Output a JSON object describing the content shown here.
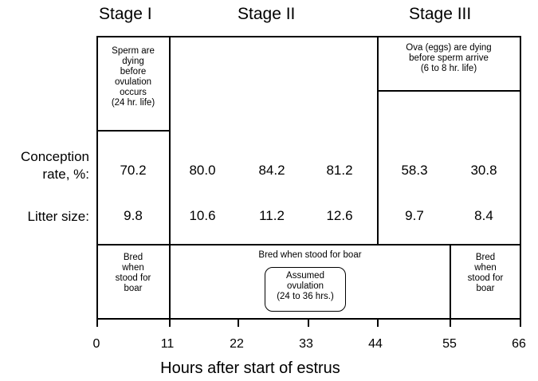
{
  "stages": [
    "Stage I",
    "Stage II",
    "Stage III"
  ],
  "top_notes": {
    "stage1": [
      "Sperm are",
      "dying",
      "before",
      "ovulation",
      "occurs",
      "(24 hr. life)"
    ],
    "stage3": [
      "Ova (eggs) are dying",
      "before sperm arrive",
      "(6 to 8 hr. life)"
    ]
  },
  "row_labels": {
    "conception": [
      "Conception",
      "rate, %:"
    ],
    "litter": "Litter size:"
  },
  "conception_rates": [
    "70.2",
    "80.0",
    "84.2",
    "81.2",
    "58.3",
    "30.8"
  ],
  "litter_sizes": [
    "9.8",
    "10.6",
    "11.2",
    "12.6",
    "9.7",
    "8.4"
  ],
  "bottom_notes": {
    "left": [
      "Bred",
      "when",
      "stood for",
      "boar"
    ],
    "middle": "Bred when stood for boar",
    "ovulation": [
      "Assumed",
      "ovulation",
      "(24 to 36 hrs.)"
    ],
    "right": [
      "Bred",
      "when",
      "stood for",
      "boar"
    ]
  },
  "x_ticks": [
    "0",
    "11",
    "22",
    "33",
    "44",
    "55",
    "66"
  ],
  "x_label": "Hours after start of estrus"
}
